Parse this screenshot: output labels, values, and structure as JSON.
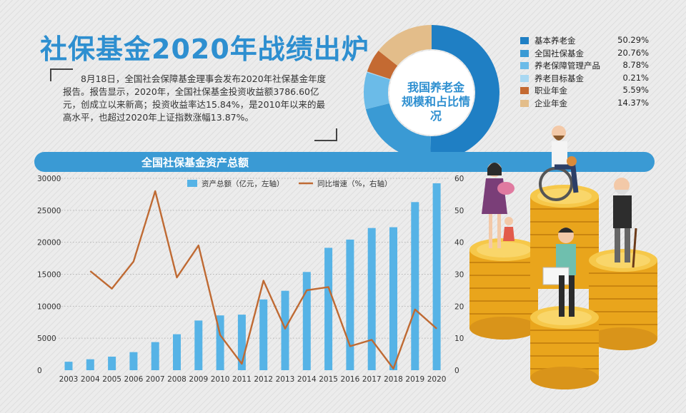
{
  "title": "社保基金2020年战绩出炉",
  "intro": "8月18日，全国社会保障基金理事会发布2020年社保基金年度报告。报告显示，2020年，全国社保基金投资收益额3786.60亿元，创成立以来新高；投资收益率达15.84%，是2010年以来的最高水平，也超过2020年上证指数涨幅13.87%。",
  "colors": {
    "title_blue": "#2e8fd0",
    "bar_blue": "#56b3e6",
    "line_brown": "#bf6a33"
  },
  "chart_data": [
    {
      "type": "pie",
      "title": "我国养老金\n规模和占比情况",
      "donut": true,
      "slices": [
        {
          "name": "基本养老金",
          "value": 50.29,
          "label": "50.29%",
          "color": "#1f7fc4"
        },
        {
          "name": "全国社保基金",
          "value": 20.76,
          "label": "20.76%",
          "color": "#3a9ad4"
        },
        {
          "name": "养老保障管理产品",
          "value": 8.78,
          "label": "8.78%",
          "color": "#6bbbe8"
        },
        {
          "name": "养老目标基金",
          "value": 0.21,
          "label": "0.21%",
          "color": "#a9d8f2"
        },
        {
          "name": "职业年金",
          "value": 5.59,
          "label": "5.59%",
          "color": "#c46a32"
        },
        {
          "name": "企业年金",
          "value": 14.37,
          "label": "14.37%",
          "color": "#e3bd8a"
        }
      ],
      "legend_position": "right"
    },
    {
      "type": "bar",
      "title": "全国社保基金资产总额",
      "categories": [
        "2003",
        "2004",
        "2005",
        "2006",
        "2007",
        "2008",
        "2009",
        "2010",
        "2011",
        "2012",
        "2013",
        "2014",
        "2015",
        "2016",
        "2017",
        "2018",
        "2019",
        "2020"
      ],
      "series": [
        {
          "name": "资产总额（亿元，左轴）",
          "type": "bar",
          "axis": "left",
          "values": [
            1325,
            1711,
            2118,
            2828,
            4397,
            5624,
            7767,
            8567,
            8688,
            11060,
            12416,
            15356,
            19138,
            20423,
            22231,
            22354,
            26285,
            29227
          ]
        },
        {
          "name": "同比增速（%，右轴）",
          "type": "line",
          "axis": "right",
          "values": [
            null,
            31,
            25.5,
            34,
            56,
            29,
            39,
            11,
            2,
            28,
            13,
            25,
            26,
            7.5,
            9.5,
            0.5,
            19,
            13
          ]
        }
      ],
      "y_left_ticks": [
        "30000",
        "25000",
        "20000",
        "15000",
        "10000",
        "5000",
        "0"
      ],
      "y_right_ticks": [
        "60",
        "50",
        "40",
        "30",
        "20",
        "10",
        "0"
      ],
      "ylim_left": [
        0,
        30000
      ],
      "ylim_right": [
        0,
        60
      ],
      "grid": "horizontal dotted",
      "legend_position": "top"
    }
  ]
}
